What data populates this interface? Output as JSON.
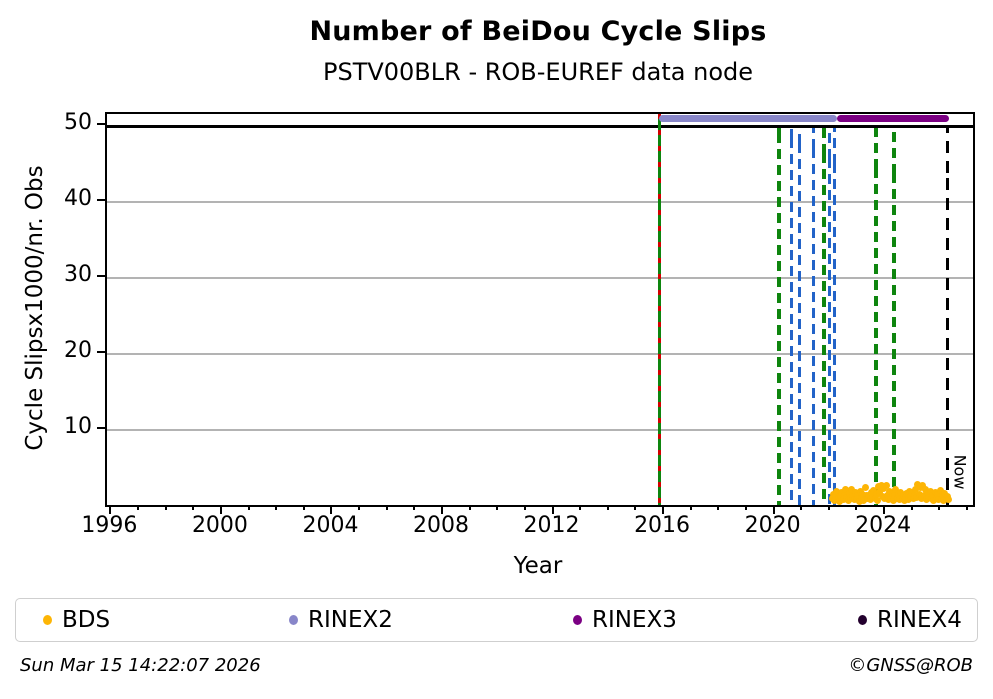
{
  "title": "Number of BeiDou Cycle Slips",
  "subtitle": "PSTV00BLR - ROB-EUREF data node",
  "footer": {
    "timestamp": "Sun Mar 15 14:22:07 2026",
    "credit": "©GNSS@ROB"
  },
  "legend": [
    {
      "label": "BDS",
      "color": "#fdb505"
    },
    {
      "label": "RINEX2",
      "color": "#8886c9"
    },
    {
      "label": "RINEX3",
      "color": "#7b0083"
    },
    {
      "label": "RINEX4",
      "color": "#23002e"
    }
  ],
  "chart_data": {
    "type": "scatter",
    "title": "Number of BeiDou Cycle Slips",
    "subtitle": "PSTV00BLR - ROB-EUREF data node",
    "xlabel": "Year",
    "ylabel": "Cycle Slipsx1000/nr. Obs",
    "xlim": [
      1995.84,
      2027.18
    ],
    "ylim": [
      0.2,
      51.6
    ],
    "xticks": [
      1996,
      2000,
      2004,
      2008,
      2012,
      2016,
      2020,
      2024
    ],
    "x_minor_tick_step": 1,
    "yticks": [
      10,
      20,
      30,
      40,
      50
    ],
    "grid": "horizontal gray gridlines at y=10,20,30,40",
    "hline": {
      "y": 50,
      "color": "#000000"
    },
    "now_marker": {
      "year": 2026.28,
      "label": "Now"
    },
    "series": [
      {
        "name": "RINEX2",
        "render": "hline-marker",
        "y": 51,
        "x_start": 2015.8,
        "x_end": 2022.25,
        "color": "#8886c9"
      },
      {
        "name": "RINEX3",
        "render": "hline-marker",
        "y": 51,
        "x_start": 2022.25,
        "x_end": 2026.3,
        "color": "#7b0083"
      },
      {
        "name": "RINEX4",
        "render": "none-visible",
        "color": "#23002e",
        "points": []
      },
      {
        "name": "BDS",
        "render": "scatter",
        "color": "#fdb505",
        "x_start": 2022.08,
        "x_step": 0.0444,
        "values": [
          1.0,
          1.6,
          0.8,
          1.3,
          2.0,
          1.1,
          0.7,
          1.5,
          1.9,
          0.9,
          1.4,
          2.2,
          1.2,
          0.8,
          1.7,
          1.0,
          2.3,
          1.3,
          0.9,
          1.8,
          1.1,
          1.5,
          0.7,
          2.0,
          1.2,
          1.6,
          0.8,
          2.5,
          1.4,
          1.0,
          1.5,
          0.9,
          1.8,
          1.2,
          2.1,
          1.0,
          1.6,
          0.8,
          2.6,
          1.9,
          2.8,
          1.3,
          2.4,
          1.1,
          2.7,
          1.5,
          0.9,
          2.0,
          1.2,
          1.7,
          0.8,
          1.4,
          2.2,
          1.0,
          1.6,
          0.9,
          1.9,
          1.2,
          1.5,
          0.8,
          1.1,
          1.7,
          0.9,
          2.0,
          1.3,
          1.8,
          1.0,
          1.5,
          2.2,
          1.2,
          2.9,
          1.6,
          2.5,
          1.0,
          2.7,
          1.4,
          2.3,
          0.9,
          1.8,
          1.2,
          2.0,
          1.0,
          1.5,
          0.8,
          1.9,
          1.3,
          1.6,
          0.9,
          2.1,
          1.1,
          1.4,
          0.8,
          1.7,
          1.0,
          1.3,
          0.9
        ]
      }
    ],
    "event_lines": [
      {
        "year": 2015.86,
        "color": "green",
        "style": "solid",
        "overlay": "red",
        "full_height": true
      },
      {
        "year": 2020.16,
        "color": "green",
        "style": "dashed"
      },
      {
        "year": 2020.63,
        "color": "blue",
        "style": "dashed"
      },
      {
        "year": 2020.92,
        "color": "blue",
        "style": "dashed"
      },
      {
        "year": 2021.43,
        "color": "blue",
        "style": "dashed"
      },
      {
        "year": 2021.8,
        "color": "green",
        "style": "dashed"
      },
      {
        "year": 2022.01,
        "color": "blue",
        "style": "dashed"
      },
      {
        "year": 2022.19,
        "color": "blue",
        "style": "dashed"
      },
      {
        "year": 2023.67,
        "color": "green",
        "style": "dashed"
      },
      {
        "year": 2024.33,
        "color": "green",
        "style": "dashed"
      },
      {
        "year": 2026.28,
        "color": "black",
        "style": "dashed",
        "label": "Now"
      }
    ],
    "legend_position": "bottom, 4 columns"
  }
}
